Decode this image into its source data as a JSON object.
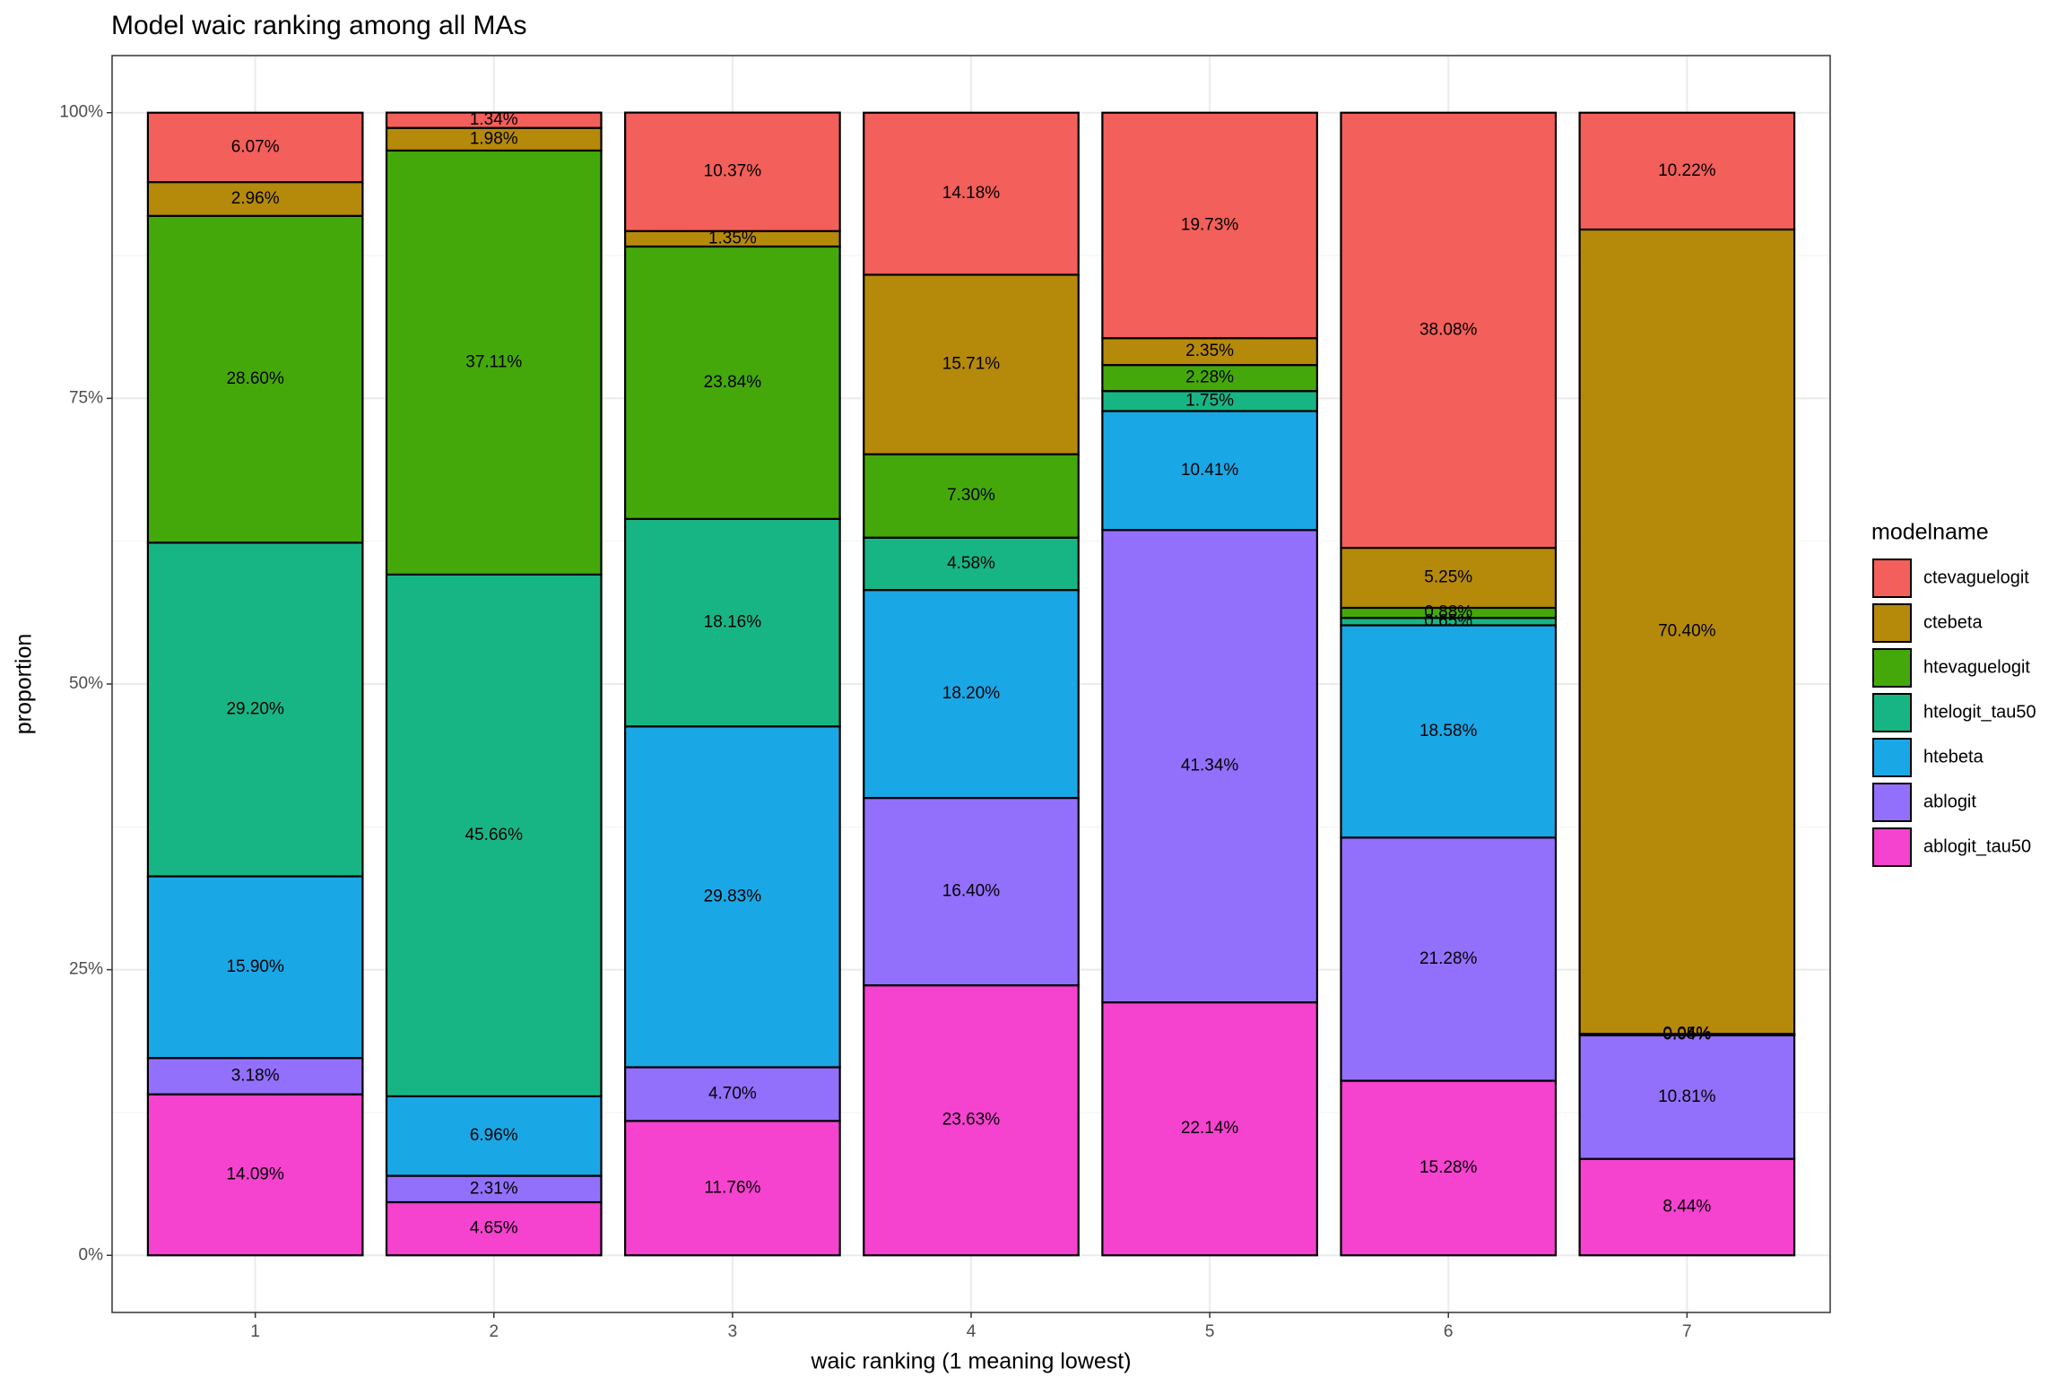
{
  "chart_data": {
    "type": "stacked_bar",
    "title": "Model waic ranking among all MAs",
    "x_label": "waic ranking (1 meaning lowest)",
    "y_label": "proportion",
    "legend_title": "modelname",
    "legend_position": "right",
    "grid": true,
    "categories": [
      "1",
      "2",
      "3",
      "4",
      "5",
      "6",
      "7"
    ],
    "ylim": [
      -5,
      105
    ],
    "yticks": [
      {
        "value": 0,
        "label": "0%"
      },
      {
        "value": 25,
        "label": "25%"
      },
      {
        "value": 50,
        "label": "50%"
      },
      {
        "value": 75,
        "label": "75%"
      },
      {
        "value": 100,
        "label": "100%"
      }
    ],
    "series": [
      {
        "name": "ctevaguelogit",
        "color": "#f35f5a",
        "values": [
          6.07,
          1.34,
          10.37,
          14.18,
          19.73,
          38.08,
          10.22
        ],
        "value_labels": [
          "6.07%",
          "1.34%",
          "10.37%",
          "14.18%",
          "19.73%",
          "38.08%",
          "10.22%"
        ]
      },
      {
        "name": "ctebeta",
        "color": "#b5890a",
        "values": [
          2.96,
          1.98,
          1.35,
          15.71,
          2.35,
          5.25,
          70.4
        ],
        "value_labels": [
          "2.96%",
          "1.98%",
          "1.35%",
          "15.71%",
          "2.35%",
          "5.25%",
          "70.40%"
        ]
      },
      {
        "name": "htevaguelogit",
        "color": "#45a80a",
        "values": [
          28.6,
          37.11,
          23.84,
          7.3,
          2.28,
          0.88,
          0.04
        ],
        "value_labels": [
          "28.60%",
          "37.11%",
          "23.84%",
          "7.30%",
          "2.28%",
          "0.88%",
          "0.04%"
        ]
      },
      {
        "name": "htelogit_tau50",
        "color": "#18b584",
        "values": [
          29.2,
          45.66,
          18.16,
          4.58,
          1.75,
          0.65,
          0.05
        ],
        "value_labels": [
          "29.20%",
          "45.66%",
          "18.16%",
          "4.58%",
          "1.75%",
          "0.65%",
          "0.05%"
        ]
      },
      {
        "name": "htebeta",
        "color": "#1aa7e6",
        "values": [
          15.9,
          6.96,
          29.83,
          18.2,
          10.41,
          18.58,
          0.04
        ],
        "value_labels": [
          "15.90%",
          "6.96%",
          "29.83%",
          "18.20%",
          "10.41%",
          "18.58%",
          "0.04%"
        ]
      },
      {
        "name": "ablogit",
        "color": "#9370fb",
        "values": [
          3.18,
          2.31,
          4.7,
          16.4,
          41.34,
          21.28,
          10.81
        ],
        "value_labels": [
          "3.18%",
          "2.31%",
          "4.70%",
          "16.40%",
          "41.34%",
          "21.28%",
          "10.81%"
        ]
      },
      {
        "name": "ablogit_tau50",
        "color": "#f542cf",
        "values": [
          14.09,
          4.65,
          11.76,
          23.63,
          22.14,
          15.28,
          8.44
        ],
        "value_labels": [
          "14.09%",
          "4.65%",
          "11.76%",
          "23.63%",
          "22.14%",
          "15.28%",
          "8.44%"
        ]
      }
    ]
  }
}
